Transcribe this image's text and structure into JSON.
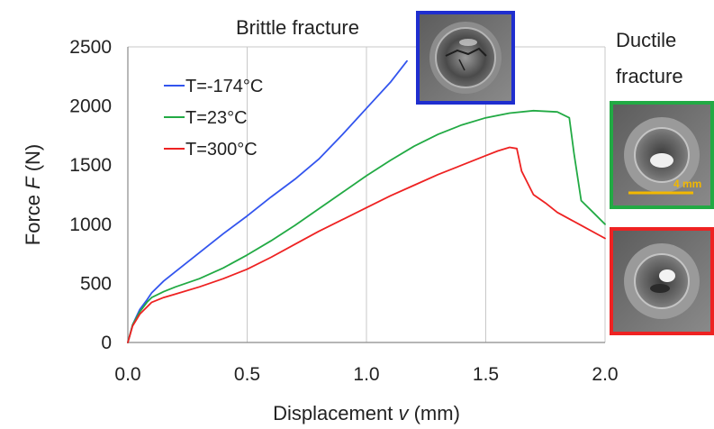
{
  "chart_data": {
    "type": "line",
    "xlabel": "Displacement v (mm)",
    "ylabel": "Force F (N)",
    "xlabel_parts": {
      "pre": "Displacement ",
      "var": "v",
      "post": " (mm)"
    },
    "ylabel_parts": {
      "pre": "Force ",
      "var": "F",
      "post": " (N)"
    },
    "xlim": [
      0,
      2.0
    ],
    "ylim": [
      0,
      2500
    ],
    "x_ticks": [
      "0.0",
      "0.5",
      "1.0",
      "1.5",
      "2.0"
    ],
    "y_ticks": [
      "0",
      "500",
      "1000",
      "1500",
      "2000",
      "2500"
    ],
    "grid": "vertical",
    "legend_position": "top-left",
    "series": [
      {
        "name": "T=-174°C",
        "color": "#3355ee",
        "x": [
          0.0,
          0.02,
          0.05,
          0.08,
          0.1,
          0.15,
          0.2,
          0.3,
          0.4,
          0.5,
          0.6,
          0.7,
          0.8,
          0.9,
          1.0,
          1.1,
          1.17
        ],
        "y": [
          0,
          150,
          280,
          360,
          420,
          520,
          600,
          760,
          920,
          1070,
          1230,
          1380,
          1550,
          1760,
          1980,
          2200,
          2380
        ]
      },
      {
        "name": "T=23°C",
        "color": "#22aa44",
        "x": [
          0.0,
          0.02,
          0.05,
          0.08,
          0.1,
          0.15,
          0.2,
          0.3,
          0.4,
          0.5,
          0.6,
          0.7,
          0.8,
          0.9,
          1.0,
          1.1,
          1.2,
          1.3,
          1.4,
          1.5,
          1.6,
          1.7,
          1.8,
          1.85,
          1.87,
          1.9,
          1.95,
          2.0
        ],
        "y": [
          0,
          150,
          260,
          340,
          380,
          430,
          470,
          540,
          630,
          740,
          860,
          990,
          1130,
          1270,
          1410,
          1540,
          1660,
          1760,
          1840,
          1900,
          1940,
          1960,
          1950,
          1900,
          1600,
          1200,
          1100,
          1000
        ]
      },
      {
        "name": "T=300°C",
        "color": "#ee2222",
        "x": [
          0.0,
          0.02,
          0.05,
          0.08,
          0.1,
          0.15,
          0.2,
          0.3,
          0.4,
          0.5,
          0.6,
          0.7,
          0.8,
          0.9,
          1.0,
          1.1,
          1.2,
          1.3,
          1.4,
          1.5,
          1.55,
          1.6,
          1.63,
          1.65,
          1.68,
          1.7,
          1.75,
          1.8,
          1.9,
          2.0
        ],
        "y": [
          0,
          140,
          240,
          300,
          340,
          380,
          410,
          470,
          540,
          620,
          720,
          830,
          940,
          1040,
          1140,
          1240,
          1330,
          1420,
          1500,
          1580,
          1620,
          1650,
          1640,
          1450,
          1330,
          1250,
          1180,
          1100,
          990,
          880
        ]
      }
    ]
  },
  "annotations": {
    "brittle_label": "Brittle fracture",
    "ductile_label_line1": "Ductile",
    "ductile_label_line2": "fracture",
    "scale_bar_label": "4 mm"
  },
  "insets": {
    "brittle_frame_color": "#1f2ecf",
    "ductile_top_frame_color": "#22aa44",
    "ductile_bottom_frame_color": "#ee2222",
    "scale_bar_color": "#f2b800"
  }
}
